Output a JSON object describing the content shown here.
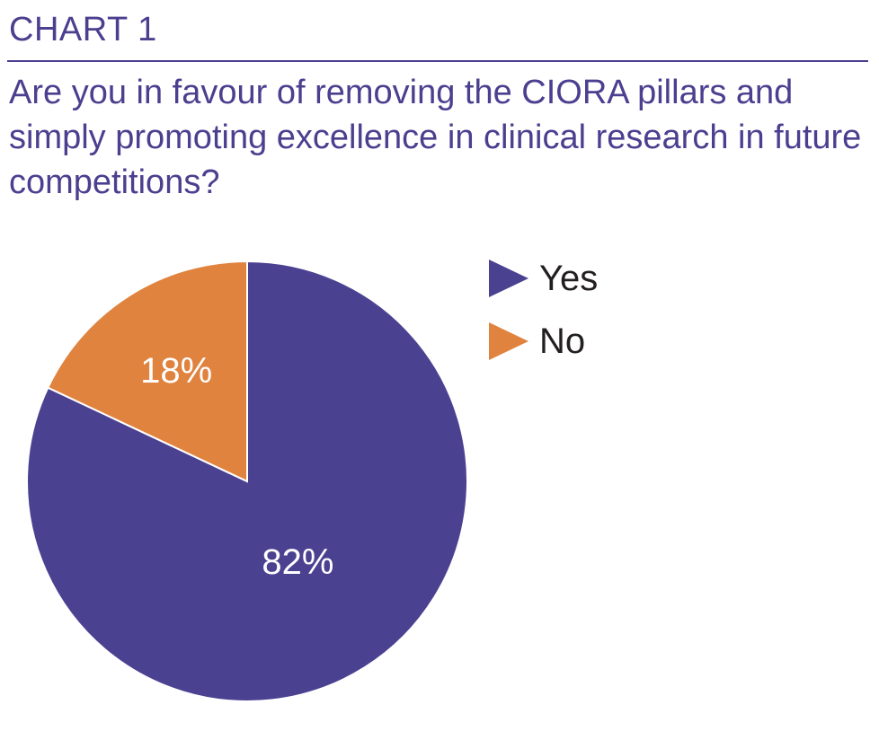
{
  "header": {
    "chart_label": "CHART 1",
    "question": "Are you in favour of removing the CIORA pillars and simply promoting excellence in clinical research in future competitions?"
  },
  "colors": {
    "yes": "#4b4191",
    "no": "#e0833f",
    "title": "#4b3f8f"
  },
  "chart_data": {
    "type": "pie",
    "title": "Are you in favour of removing the CIORA pillars and simply promoting excellence in clinical research in future competitions?",
    "categories": [
      "Yes",
      "No"
    ],
    "values": [
      82,
      18
    ],
    "labels": [
      "82%",
      "18%"
    ],
    "legend": "right"
  },
  "legend": {
    "items": [
      {
        "label": "Yes"
      },
      {
        "label": "No"
      }
    ]
  }
}
